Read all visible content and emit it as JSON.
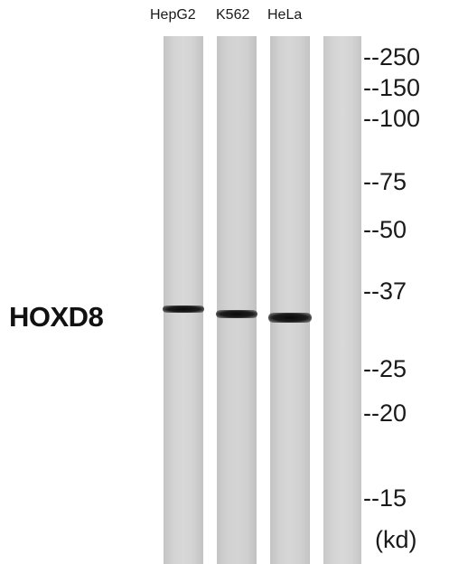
{
  "lanes": [
    "HepG2",
    "K562",
    "HeLa"
  ],
  "protein": "HOXD8",
  "markers": [
    "--250",
    "--150",
    "--100",
    "--75",
    "--50",
    "--37",
    "--25",
    "--20",
    "--15"
  ],
  "unit": "(kd)"
}
